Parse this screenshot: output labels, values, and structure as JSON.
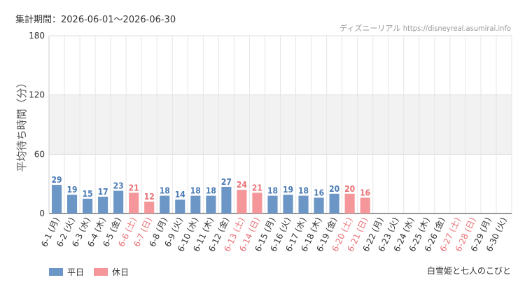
{
  "header": {
    "period_label": "集計期間：2026-06-01〜2026-06-30",
    "source_label": "ディズニーリアル",
    "source_url": "https://disneyreal.asumirai.info"
  },
  "footer": {
    "attraction_name": "白雪姫と七人のこびと"
  },
  "legend": {
    "items": [
      {
        "label": "平日",
        "color": "#6b96c6"
      },
      {
        "label": "休日",
        "color": "#f4969a"
      }
    ]
  },
  "chart_data": {
    "type": "bar",
    "ylabel": "平均待ち時間（分）",
    "ylim": [
      0,
      180
    ],
    "yticks": [
      0,
      60,
      120,
      180
    ],
    "grid": true,
    "legend_position": "bottom-left",
    "colors": {
      "weekday": "#6b96c6",
      "holiday": "#f4969a",
      "weekday_text": "#4b7bb5",
      "holiday_text": "#e87075"
    },
    "categories": [
      "6-1 (月)",
      "6-2 (火)",
      "6-3 (水)",
      "6-4 (木)",
      "6-5 (金)",
      "6-6 (土)",
      "6-7 (日)",
      "6-8 (月)",
      "6-9 (火)",
      "6-10 (水)",
      "6-11 (木)",
      "6-12 (金)",
      "6-13 (土)",
      "6-14 (日)",
      "6-15 (月)",
      "6-16 (火)",
      "6-17 (水)",
      "6-18 (木)",
      "6-19 (金)",
      "6-20 (土)",
      "6-21 (日)",
      "6-22 (月)",
      "6-23 (火)",
      "6-24 (水)",
      "6-25 (木)",
      "6-26 (金)",
      "6-27 (土)",
      "6-28 (日)",
      "6-29 (月)",
      "6-30 (火)"
    ],
    "values": [
      29,
      19,
      15,
      17,
      23,
      21,
      12,
      18,
      14,
      18,
      18,
      27,
      24,
      21,
      18,
      19,
      18,
      16,
      20,
      20,
      16,
      null,
      null,
      null,
      null,
      null,
      null,
      null,
      null,
      null
    ],
    "holiday": [
      false,
      false,
      false,
      false,
      false,
      true,
      true,
      false,
      false,
      false,
      false,
      false,
      true,
      true,
      false,
      false,
      false,
      false,
      false,
      true,
      true,
      false,
      false,
      false,
      false,
      false,
      true,
      true,
      false,
      false
    ]
  }
}
